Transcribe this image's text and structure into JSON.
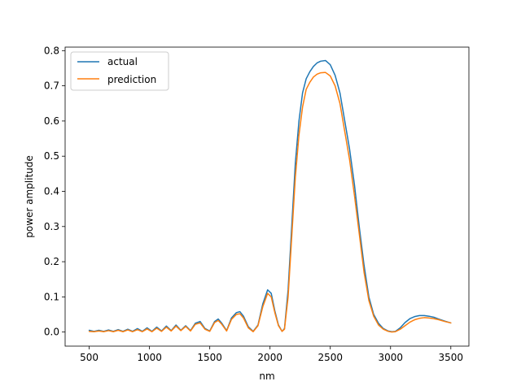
{
  "chart_data": {
    "type": "line",
    "title": "",
    "xlabel": "nm",
    "ylabel": "power amplitude",
    "xlim": [
      300,
      3650
    ],
    "ylim": [
      -0.04,
      0.81
    ],
    "xticks": [
      500,
      1000,
      1500,
      2000,
      2500,
      3000,
      3500
    ],
    "yticks": [
      0.0,
      0.1,
      0.2,
      0.3,
      0.4,
      0.5,
      0.6,
      0.7,
      0.8
    ],
    "xtick_labels": [
      "500",
      "1000",
      "1500",
      "2000",
      "2500",
      "3000",
      "3500"
    ],
    "ytick_labels": [
      "0.0",
      "0.1",
      "0.2",
      "0.3",
      "0.4",
      "0.5",
      "0.6",
      "0.7",
      "0.8"
    ],
    "grid": false,
    "legend_position": "top-left",
    "series": [
      {
        "name": "actual",
        "color": "#1f77b4",
        "x": [
          500,
          540,
          580,
          620,
          660,
          700,
          740,
          780,
          820,
          860,
          900,
          940,
          980,
          1020,
          1060,
          1100,
          1140,
          1180,
          1220,
          1260,
          1300,
          1340,
          1380,
          1420,
          1460,
          1500,
          1540,
          1570,
          1600,
          1640,
          1680,
          1720,
          1750,
          1780,
          1820,
          1860,
          1900,
          1940,
          1980,
          2010,
          2040,
          2070,
          2100,
          2120,
          2150,
          2180,
          2210,
          2240,
          2270,
          2300,
          2330,
          2360,
          2390,
          2420,
          2460,
          2500,
          2540,
          2580,
          2620,
          2660,
          2700,
          2740,
          2780,
          2820,
          2860,
          2900,
          2940,
          2980,
          3010,
          3040,
          3080,
          3120,
          3160,
          3200,
          3240,
          3280,
          3320,
          3360,
          3400,
          3450,
          3500
        ],
        "y": [
          0.005,
          0.002,
          0.005,
          0.002,
          0.006,
          0.002,
          0.007,
          0.002,
          0.008,
          0.002,
          0.01,
          0.002,
          0.012,
          0.002,
          0.014,
          0.003,
          0.017,
          0.004,
          0.02,
          0.005,
          0.018,
          0.004,
          0.025,
          0.03,
          0.01,
          0.003,
          0.03,
          0.037,
          0.025,
          0.004,
          0.04,
          0.055,
          0.058,
          0.045,
          0.015,
          0.002,
          0.02,
          0.08,
          0.12,
          0.11,
          0.06,
          0.02,
          0.002,
          0.01,
          0.12,
          0.3,
          0.48,
          0.6,
          0.68,
          0.72,
          0.74,
          0.755,
          0.765,
          0.77,
          0.772,
          0.76,
          0.73,
          0.68,
          0.6,
          0.52,
          0.42,
          0.3,
          0.19,
          0.1,
          0.05,
          0.025,
          0.01,
          0.003,
          0.001,
          0.002,
          0.012,
          0.027,
          0.038,
          0.044,
          0.047,
          0.047,
          0.045,
          0.042,
          0.037,
          0.031,
          0.026
        ]
      },
      {
        "name": "prediction",
        "color": "#ff7f0e",
        "x": [
          500,
          540,
          580,
          620,
          660,
          700,
          740,
          780,
          820,
          860,
          900,
          940,
          980,
          1020,
          1060,
          1100,
          1140,
          1180,
          1220,
          1260,
          1300,
          1340,
          1380,
          1420,
          1460,
          1500,
          1540,
          1570,
          1600,
          1640,
          1680,
          1720,
          1750,
          1780,
          1820,
          1860,
          1900,
          1940,
          1980,
          2010,
          2040,
          2070,
          2100,
          2120,
          2150,
          2180,
          2210,
          2240,
          2270,
          2300,
          2330,
          2360,
          2390,
          2420,
          2460,
          2500,
          2540,
          2580,
          2620,
          2660,
          2700,
          2740,
          2780,
          2820,
          2860,
          2900,
          2940,
          2980,
          3010,
          3040,
          3080,
          3120,
          3160,
          3200,
          3240,
          3280,
          3320,
          3360,
          3400,
          3450,
          3500
        ],
        "y": [
          0.002,
          0.001,
          0.003,
          0.001,
          0.004,
          0.001,
          0.005,
          0.001,
          0.006,
          0.001,
          0.007,
          0.001,
          0.009,
          0.001,
          0.011,
          0.002,
          0.014,
          0.003,
          0.017,
          0.004,
          0.016,
          0.003,
          0.022,
          0.026,
          0.008,
          0.002,
          0.027,
          0.033,
          0.022,
          0.003,
          0.036,
          0.05,
          0.052,
          0.04,
          0.012,
          0.001,
          0.018,
          0.072,
          0.11,
          0.1,
          0.055,
          0.018,
          0.002,
          0.008,
          0.1,
          0.27,
          0.44,
          0.56,
          0.64,
          0.69,
          0.71,
          0.725,
          0.733,
          0.737,
          0.738,
          0.728,
          0.7,
          0.65,
          0.57,
          0.49,
          0.39,
          0.28,
          0.17,
          0.09,
          0.045,
          0.02,
          0.008,
          0.002,
          0.0,
          0.001,
          0.008,
          0.018,
          0.028,
          0.035,
          0.039,
          0.041,
          0.04,
          0.038,
          0.035,
          0.03,
          0.026
        ]
      }
    ]
  }
}
